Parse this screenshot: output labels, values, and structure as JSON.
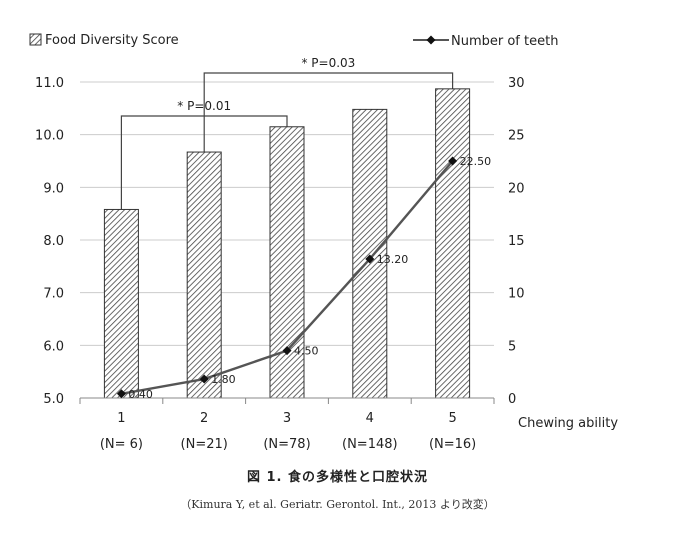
{
  "chart_data": {
    "type": "bar",
    "categories": [
      "1",
      "2",
      "3",
      "4",
      "5"
    ],
    "n_labels": [
      "(N= 6)",
      "(N=21)",
      "(N=78)",
      "(N=148)",
      "(N=16)"
    ],
    "xlabel": "Chewing ability",
    "series": [
      {
        "name": "Food Diversity Score",
        "type": "bar",
        "axis": "left",
        "pattern": "diagonal-hatch",
        "values": [
          8.58,
          9.67,
          10.15,
          10.48,
          10.87
        ]
      },
      {
        "name": "Number of teeth",
        "type": "line",
        "axis": "right",
        "marker": "diamond",
        "values": [
          0.4,
          1.8,
          4.5,
          13.2,
          22.5
        ],
        "value_labels": [
          "0.40",
          "1.80",
          "4.50",
          "13.20",
          "22.50"
        ]
      }
    ],
    "y_left": {
      "lim": [
        5.0,
        11.0
      ],
      "ticks": [
        "5.0",
        "6.0",
        "7.0",
        "8.0",
        "9.0",
        "10.0",
        "11.0"
      ]
    },
    "y_right": {
      "lim": [
        0,
        30
      ],
      "ticks": [
        "0",
        "5",
        "10",
        "15",
        "20",
        "25",
        "30"
      ]
    },
    "grid": true,
    "legend": {
      "placement": "top",
      "items": [
        "Food Diversity Score",
        "Number of teeth"
      ]
    },
    "annotations": [
      {
        "text": "* P=0.01",
        "from_category": "1",
        "to_category": "3"
      },
      {
        "text": "* P=0.03",
        "from_category": "2",
        "to_category": "5"
      }
    ]
  },
  "caption": {
    "title": "図 1.  食の多様性と口腔状況",
    "source": "（Kimura Y, et al. Geriatr. Gerontol. Int., 2013 より改変）"
  },
  "colors": {
    "bar_stroke": "#333333",
    "hatch": "#444444",
    "line": "#555555",
    "marker": "#111111",
    "grid": "#cccccc",
    "axis": "#888888",
    "bracket": "#444444"
  }
}
